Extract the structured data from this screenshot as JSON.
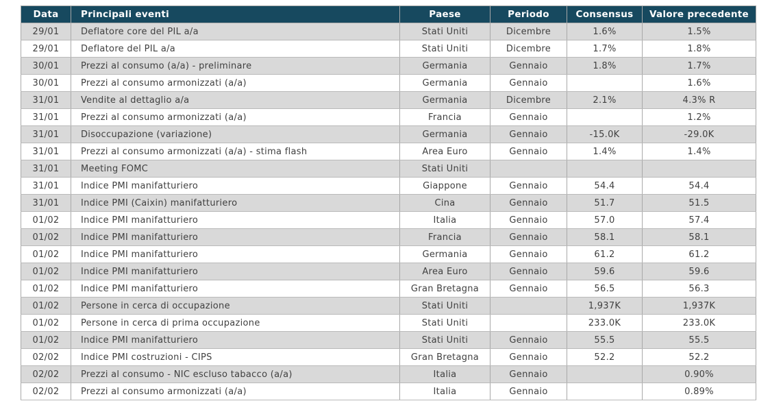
{
  "colors": {
    "header-bg": "#17495F",
    "header-text": "#FFFFFF",
    "row-alt-bg": "#D9D9D9",
    "row-bg": "#FFFFFF",
    "cell-text": "#404040",
    "grid-line": "#A8A8A8"
  },
  "table": {
    "columns": [
      {
        "key": "data",
        "label": "Data"
      },
      {
        "key": "evento",
        "label": "Principali eventi"
      },
      {
        "key": "paese",
        "label": "Paese"
      },
      {
        "key": "periodo",
        "label": "Periodo"
      },
      {
        "key": "consensus",
        "label": "Consensus"
      },
      {
        "key": "precedente",
        "label": "Valore precedente"
      }
    ],
    "rows": [
      {
        "data": "29/01",
        "evento": "Deflatore core del PIL a/a",
        "paese": "Stati Uniti",
        "periodo": "Dicembre",
        "consensus": "1.6%",
        "precedente": "1.5%"
      },
      {
        "data": "29/01",
        "evento": "Deflatore del PIL a/a",
        "paese": "Stati Uniti",
        "periodo": "Dicembre",
        "consensus": "1.7%",
        "precedente": "1.8%"
      },
      {
        "data": "30/01",
        "evento": "Prezzi al consumo (a/a) - preliminare",
        "paese": "Germania",
        "periodo": "Gennaio",
        "consensus": "1.8%",
        "precedente": "1.7%"
      },
      {
        "data": "30/01",
        "evento": "Prezzi al consumo armonizzati (a/a)",
        "paese": "Germania",
        "periodo": "Gennaio",
        "consensus": "",
        "precedente": "1.6%"
      },
      {
        "data": "31/01",
        "evento": "Vendite al dettaglio a/a",
        "paese": "Germania",
        "periodo": "Dicembre",
        "consensus": "2.1%",
        "precedente": "4.3% R"
      },
      {
        "data": "31/01",
        "evento": "Prezzi al consumo armonizzati (a/a)",
        "paese": "Francia",
        "periodo": "Gennaio",
        "consensus": "",
        "precedente": "1.2%"
      },
      {
        "data": "31/01",
        "evento": "Disoccupazione (variazione)",
        "paese": "Germania",
        "periodo": "Gennaio",
        "consensus": "-15.0K",
        "precedente": "-29.0K"
      },
      {
        "data": "31/01",
        "evento": "Prezzi al consumo armonizzati (a/a) - stima flash",
        "paese": "Area Euro",
        "periodo": "Gennaio",
        "consensus": "1.4%",
        "precedente": "1.4%"
      },
      {
        "data": "31/01",
        "evento": "Meeting FOMC",
        "paese": "Stati Uniti",
        "periodo": "",
        "consensus": "",
        "precedente": ""
      },
      {
        "data": "31/01",
        "evento": "Indice PMI manifatturiero",
        "paese": "Giappone",
        "periodo": "Gennaio",
        "consensus": "54.4",
        "precedente": "54.4"
      },
      {
        "data": "31/01",
        "evento": "Indice PMI (Caixin) manifatturiero",
        "paese": "Cina",
        "periodo": "Gennaio",
        "consensus": "51.7",
        "precedente": "51.5"
      },
      {
        "data": "01/02",
        "evento": "Indice PMI manifatturiero",
        "paese": "Italia",
        "periodo": "Gennaio",
        "consensus": "57.0",
        "precedente": "57.4"
      },
      {
        "data": "01/02",
        "evento": "Indice PMI manifatturiero",
        "paese": "Francia",
        "periodo": "Gennaio",
        "consensus": "58.1",
        "precedente": "58.1"
      },
      {
        "data": "01/02",
        "evento": "Indice PMI manifatturiero",
        "paese": "Germania",
        "periodo": "Gennaio",
        "consensus": "61.2",
        "precedente": "61.2"
      },
      {
        "data": "01/02",
        "evento": "Indice PMI manifatturiero",
        "paese": "Area Euro",
        "periodo": "Gennaio",
        "consensus": "59.6",
        "precedente": "59.6"
      },
      {
        "data": "01/02",
        "evento": "Indice PMI manifatturiero",
        "paese": "Gran Bretagna",
        "periodo": "Gennaio",
        "consensus": "56.5",
        "precedente": "56.3"
      },
      {
        "data": "01/02",
        "evento": "Persone in cerca di occupazione",
        "paese": "Stati Uniti",
        "periodo": "",
        "consensus": "1,937K",
        "precedente": "1,937K"
      },
      {
        "data": "01/02",
        "evento": "Persone in cerca di prima occupazione",
        "paese": "Stati Uniti",
        "periodo": "",
        "consensus": "233.0K",
        "precedente": "233.0K"
      },
      {
        "data": "01/02",
        "evento": "Indice PMI manifatturiero",
        "paese": "Stati Uniti",
        "periodo": "Gennaio",
        "consensus": "55.5",
        "precedente": "55.5"
      },
      {
        "data": "02/02",
        "evento": "Indice PMI costruzioni - CIPS",
        "paese": "Gran Bretagna",
        "periodo": "Gennaio",
        "consensus": "52.2",
        "precedente": "52.2"
      },
      {
        "data": "02/02",
        "evento": "Prezzi al consumo - NIC escluso tabacco (a/a)",
        "paese": "Italia",
        "periodo": "Gennaio",
        "consensus": "",
        "precedente": "0.90%"
      },
      {
        "data": "02/02",
        "evento": "Prezzi al consumo armonizzati (a/a)",
        "paese": "Italia",
        "periodo": "Gennaio",
        "consensus": "",
        "precedente": "0.89%"
      }
    ]
  }
}
